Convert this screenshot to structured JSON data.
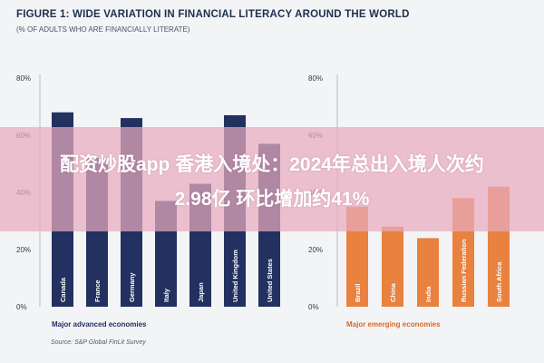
{
  "header": {
    "title": "FIGURE 1: WIDE VARIATION IN FINANCIAL LITERACY AROUND THE WORLD",
    "subtitle": "(% OF ADULTS WHO ARE FINANCIALLY LITERATE)"
  },
  "chart_data": [
    {
      "type": "bar",
      "xlabel": "Major advanced economies",
      "categories": [
        "Canada",
        "France",
        "Germany",
        "Italy",
        "Japan",
        "United Kingdom",
        "United States"
      ],
      "values": [
        68,
        52,
        66,
        37,
        43,
        67,
        57
      ],
      "ylim": [
        0,
        80
      ],
      "yticks": [
        "0%",
        "20%",
        "40%",
        "60%",
        "80%"
      ],
      "color": "#22315f",
      "grid": false
    },
    {
      "type": "bar",
      "xlabel": "Major emerging economies",
      "categories": [
        "Brazil",
        "China",
        "India",
        "Russian Federation",
        "South Africa"
      ],
      "values": [
        35,
        28,
        24,
        38,
        42
      ],
      "ylim": [
        0,
        80
      ],
      "yticks": [
        "0%",
        "20%",
        "40%",
        "60%",
        "80%"
      ],
      "color": "#e9813f",
      "grid": false
    }
  ],
  "source": "Source: S&P Global FinLit Survey",
  "overlay": {
    "line1": "配资炒股app 香港入境处：2024年总出入境人次约",
    "line2": "2.98亿 环比增加约41%"
  }
}
